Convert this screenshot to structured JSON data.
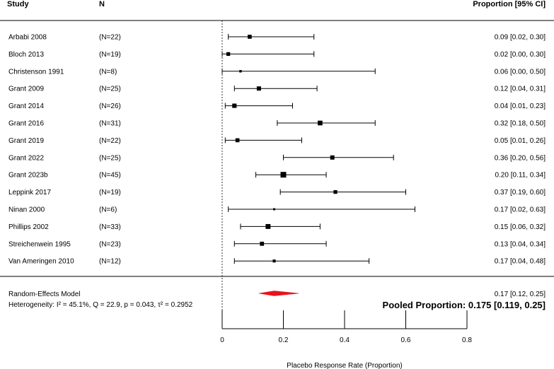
{
  "headers": {
    "study": "Study",
    "n": "N",
    "ci": "Proportion [95% CI]"
  },
  "chart_data": {
    "type": "forest",
    "xlabel": "Placebo Response Rate (Proportion)",
    "xlim": [
      0,
      0.8
    ],
    "xticks": [
      "0",
      "0.2",
      "0.4",
      "0.6",
      "0.8"
    ],
    "xtick_values": [
      0,
      0.2,
      0.4,
      0.6,
      0.8
    ],
    "reference_line": 0,
    "studies": [
      {
        "name": "Arbabi 2008",
        "n": "(N=22)",
        "est": 0.09,
        "lo": 0.02,
        "hi": 0.3,
        "ci_text": "0.09 [0.02, 0.30]"
      },
      {
        "name": "Bloch 2013",
        "n": "(N=19)",
        "est": 0.02,
        "lo": 0.0,
        "hi": 0.3,
        "ci_text": "0.02 [0.00, 0.30]"
      },
      {
        "name": "Christenson 1991",
        "n": "(N=8)",
        "est": 0.06,
        "lo": 0.0,
        "hi": 0.5,
        "ci_text": "0.06 [0.00, 0.50]"
      },
      {
        "name": "Grant 2009",
        "n": "(N=25)",
        "est": 0.12,
        "lo": 0.04,
        "hi": 0.31,
        "ci_text": "0.12 [0.04, 0.31]"
      },
      {
        "name": "Grant 2014",
        "n": "(N=26)",
        "est": 0.04,
        "lo": 0.01,
        "hi": 0.23,
        "ci_text": "0.04 [0.01, 0.23]"
      },
      {
        "name": "Grant 2016",
        "n": "(N=31)",
        "est": 0.32,
        "lo": 0.18,
        "hi": 0.5,
        "ci_text": "0.32 [0.18, 0.50]"
      },
      {
        "name": "Grant 2019",
        "n": "(N=22)",
        "est": 0.05,
        "lo": 0.01,
        "hi": 0.26,
        "ci_text": "0.05 [0.01, 0.26]"
      },
      {
        "name": "Grant 2022",
        "n": "(N=25)",
        "est": 0.36,
        "lo": 0.2,
        "hi": 0.56,
        "ci_text": "0.36 [0.20, 0.56]"
      },
      {
        "name": "Grant 2023b",
        "n": "(N=45)",
        "est": 0.2,
        "lo": 0.11,
        "hi": 0.34,
        "ci_text": "0.20 [0.11, 0.34]"
      },
      {
        "name": "Leppink 2017",
        "n": "(N=19)",
        "est": 0.37,
        "lo": 0.19,
        "hi": 0.6,
        "ci_text": "0.37 [0.19, 0.60]"
      },
      {
        "name": "Ninan 2000",
        "n": "(N=6)",
        "est": 0.17,
        "lo": 0.02,
        "hi": 0.63,
        "ci_text": "0.17 [0.02, 0.63]"
      },
      {
        "name": "Phillips 2002",
        "n": "(N=33)",
        "est": 0.15,
        "lo": 0.06,
        "hi": 0.32,
        "ci_text": "0.15 [0.06, 0.32]"
      },
      {
        "name": "Streichenwein 1995",
        "n": "(N=23)",
        "est": 0.13,
        "lo": 0.04,
        "hi": 0.34,
        "ci_text": "0.13 [0.04, 0.34]"
      },
      {
        "name": "Van Ameringen 2010",
        "n": "(N=12)",
        "est": 0.17,
        "lo": 0.04,
        "hi": 0.48,
        "ci_text": "0.17 [0.04, 0.48]"
      }
    ],
    "pooled": {
      "label": "Random-Effects Model",
      "est": 0.17,
      "lo": 0.12,
      "hi": 0.25,
      "ci_text": "0.17 [0.12, 0.25]",
      "heterogeneity": "Heterogeneity: I² = 45.1%, Q = 22.9, p = 0.043, τ² = 0.2952",
      "summary": "Pooled Proportion: 0.175 [0.119, 0.25]",
      "color": "#e8141c"
    }
  }
}
